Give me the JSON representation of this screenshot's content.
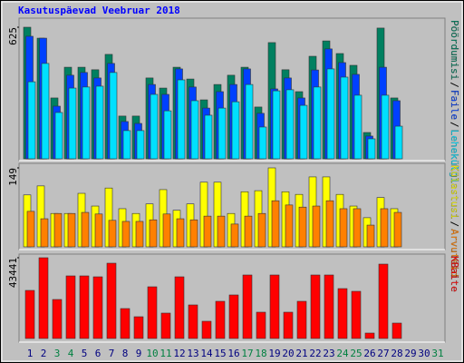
{
  "title": "Kasutuspäevad Veebruar 2018",
  "chart_data": [
    {
      "type": "bar",
      "categories": [
        "1",
        "2",
        "3",
        "4",
        "5",
        "6",
        "7",
        "8",
        "9",
        "10",
        "11",
        "12",
        "13",
        "14",
        "15",
        "16",
        "17",
        "18",
        "19",
        "20",
        "21",
        "22",
        "23",
        "24",
        "25",
        "26",
        "27",
        "28",
        "29",
        "30",
        "31"
      ],
      "xtick_colors": [
        "#000080",
        "#000080",
        "#008040",
        "#008040",
        "#000080",
        "#000080",
        "#000080",
        "#000080",
        "#000080",
        "#008040",
        "#008040",
        "#000080",
        "#000080",
        "#000080",
        "#000080",
        "#000080",
        "#008040",
        "#008040",
        "#000080",
        "#000080",
        "#000080",
        "#000080",
        "#000080",
        "#008040",
        "#008040",
        "#000080",
        "#000080",
        "#000080",
        "#000080",
        "#000080",
        "#008040"
      ],
      "ylim": [
        0,
        625
      ],
      "yticks": [
        625
      ],
      "legend_separator": "/",
      "series": [
        {
          "name": "Pöördumisi",
          "color": "#008060",
          "values": [
            625,
            573,
            289,
            435,
            435,
            423,
            496,
            203,
            203,
            384,
            336,
            435,
            379,
            280,
            353,
            397,
            435,
            246,
            552,
            423,
            319,
            487,
            560,
            500,
            444,
            125,
            621,
            289,
            null,
            null,
            null
          ]
        },
        {
          "name": "Faile",
          "color": "#0040ff",
          "values": [
            582,
            573,
            250,
            397,
            410,
            384,
            453,
            177,
            168,
            353,
            306,
            427,
            341,
            241,
            319,
            353,
            427,
            216,
            332,
            384,
            289,
            422,
            522,
            457,
            401,
            108,
            435,
            276,
            null,
            null,
            null
          ]
        },
        {
          "name": "Lehekülgi",
          "color": "#00e0ff",
          "values": [
            366,
            453,
            220,
            336,
            341,
            345,
            410,
            134,
            134,
            306,
            228,
            375,
            276,
            207,
            241,
            271,
            353,
            151,
            323,
            328,
            254,
            341,
            427,
            388,
            302,
            95,
            302,
            155,
            null,
            null,
            null
          ]
        }
      ]
    },
    {
      "type": "bar",
      "ylim": [
        0,
        149
      ],
      "yticks": [
        149
      ],
      "legend_separator": "/",
      "series": [
        {
          "name": "Külastusi",
          "color": "#ffff00",
          "values": [
            98,
            115,
            63,
            63,
            101,
            77,
            111,
            72,
            63,
            81,
            108,
            69,
            81,
            122,
            122,
            63,
            104,
            106,
            149,
            104,
            99,
            132,
            132,
            99,
            77,
            55,
            93,
            72,
            null,
            null,
            null
          ]
        },
        {
          "name": "Arvuteid",
          "color": "#ff8000",
          "values": [
            67,
            53,
            63,
            63,
            65,
            62,
            50,
            48,
            48,
            51,
            62,
            53,
            51,
            58,
            58,
            43,
            58,
            63,
            87,
            79,
            75,
            77,
            87,
            72,
            72,
            41,
            72,
            65,
            null,
            null,
            null
          ]
        }
      ]
    },
    {
      "type": "bar",
      "ylim": [
        0,
        43441
      ],
      "yticks": [
        43441
      ],
      "series": [
        {
          "name": "KBaite",
          "color": "#ff0000",
          "values": [
            25864,
            43441,
            20984,
            33672,
            33672,
            33184,
            40504,
            16104,
            11712,
            27816,
            13664,
            33184,
            18056,
            9272,
            20008,
            23424,
            34160,
            14152,
            34160,
            14152,
            20008,
            34160,
            34160,
            26840,
            25376,
            2928,
            40016,
            8296,
            null,
            null,
            null
          ]
        }
      ]
    }
  ]
}
